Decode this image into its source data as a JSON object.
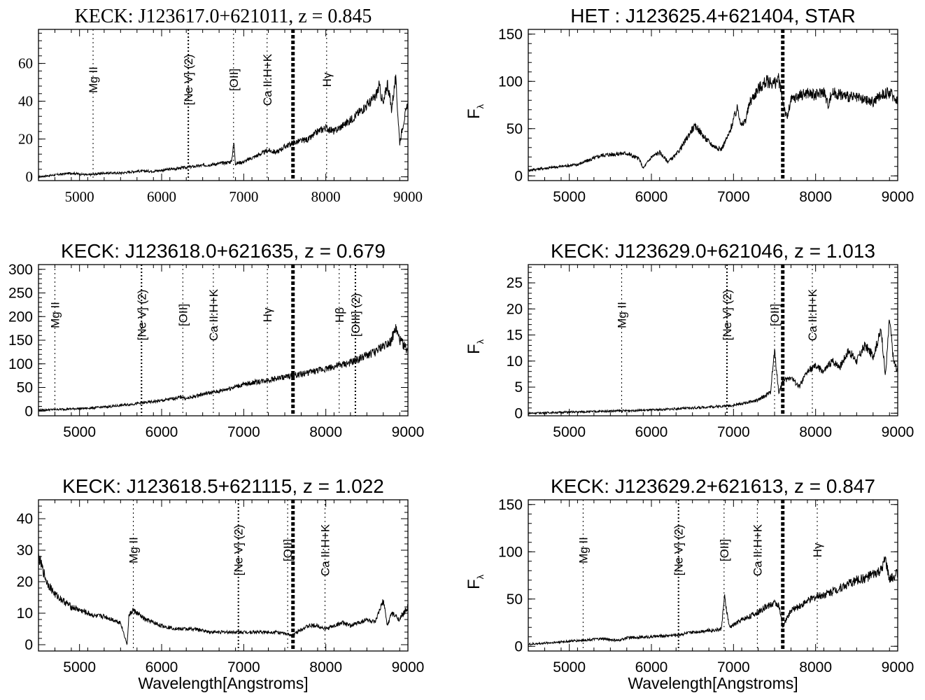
{
  "chart_data": [
    {
      "type": "line",
      "title": "KECK: J123617.0+621011, z =  0.845",
      "xlabel": "",
      "ylabel": "",
      "xlim": [
        4500,
        9000
      ],
      "ylim": [
        -2,
        78
      ],
      "xticks": [
        5000,
        6000,
        7000,
        8000,
        9000
      ],
      "yticks": [
        0,
        20,
        40,
        60
      ],
      "atmospheric_band": 7600,
      "lines": [
        {
          "label": "Mg II",
          "x": 5165
        },
        {
          "label": "[Ne V] (2)",
          "x": 6325
        },
        {
          "label": "[OII]",
          "x": 6876
        },
        {
          "label": "Ca II:H+K",
          "x": 7285
        },
        {
          "label": "Hγ",
          "x": 8010
        }
      ],
      "series": [
        {
          "x": [
            4500,
            4700,
            4900,
            5100,
            5300,
            5500,
            5700,
            5900,
            6100,
            6300,
            6500,
            6700,
            6850,
            6880,
            6900,
            7000,
            7100,
            7200,
            7300,
            7400,
            7500,
            7600,
            7700,
            7800,
            7900,
            8000,
            8100,
            8200,
            8300,
            8400,
            8500,
            8600,
            8650,
            8700,
            8750,
            8800,
            8850,
            8900,
            8950,
            9000
          ],
          "y": [
            0,
            1,
            2,
            1,
            2,
            2,
            3,
            3,
            4,
            5,
            6,
            7,
            8,
            18,
            7,
            8,
            10,
            12,
            14,
            13,
            16,
            18,
            19,
            20,
            24,
            26,
            24,
            27,
            30,
            34,
            38,
            42,
            48,
            38,
            50,
            36,
            52,
            18,
            30,
            38
          ]
        }
      ]
    },
    {
      "type": "line",
      "title": "HET : J123625.4+621404, STAR",
      "xlabel": "",
      "ylabel": "F",
      "xlim": [
        4500,
        9000
      ],
      "ylim": [
        -5,
        155
      ],
      "xticks": [
        5000,
        6000,
        7000,
        8000,
        9000
      ],
      "yticks": [
        0,
        50,
        100,
        150
      ],
      "atmospheric_band": 7600,
      "lines": [],
      "series": [
        {
          "x": [
            4500,
            4800,
            5100,
            5400,
            5700,
            5850,
            5900,
            6000,
            6100,
            6200,
            6300,
            6400,
            6500,
            6550,
            6650,
            6750,
            6850,
            6950,
            7000,
            7050,
            7100,
            7150,
            7200,
            7300,
            7400,
            7500,
            7550,
            7600,
            7650,
            7700,
            7800,
            7900,
            8000,
            8100,
            8150,
            8200,
            8300,
            8400,
            8500,
            8600,
            8700,
            8800,
            8900,
            9000
          ],
          "y": [
            6,
            9,
            12,
            22,
            24,
            18,
            8,
            20,
            25,
            15,
            22,
            35,
            50,
            52,
            40,
            32,
            28,
            45,
            60,
            72,
            52,
            60,
            78,
            92,
            100,
            98,
            102,
            80,
            60,
            80,
            85,
            88,
            85,
            90,
            75,
            88,
            86,
            84,
            82,
            80,
            78,
            86,
            88,
            80
          ]
        }
      ]
    },
    {
      "type": "line",
      "title": "KECK: J123618.0+621635, z =  0.679",
      "xlabel": "",
      "ylabel": "",
      "xlim": [
        4500,
        9000
      ],
      "ylim": [
        -10,
        310
      ],
      "xticks": [
        5000,
        6000,
        7000,
        8000,
        9000
      ],
      "yticks": [
        0,
        50,
        100,
        150,
        200,
        250,
        300
      ],
      "atmospheric_band": 7600,
      "lines": [
        {
          "label": "Mg II",
          "x": 4700
        },
        {
          "label": "[Ne V] (2)",
          "x": 5755
        },
        {
          "label": "[OII]",
          "x": 6258
        },
        {
          "label": "Ca II:H+K",
          "x": 6630
        },
        {
          "label": "Hγ",
          "x": 7288
        },
        {
          "label": "Hβ",
          "x": 8163
        },
        {
          "label": "[OIII] (2)",
          "x": 8360
        }
      ],
      "series": [
        {
          "x": [
            4500,
            4800,
            5100,
            5400,
            5700,
            6000,
            6250,
            6300,
            6500,
            6700,
            6900,
            7100,
            7300,
            7500,
            7700,
            7900,
            8100,
            8300,
            8400,
            8500,
            8600,
            8700,
            8800,
            8850,
            8900,
            8950,
            9000
          ],
          "y": [
            2,
            4,
            6,
            10,
            16,
            22,
            30,
            26,
            36,
            42,
            52,
            60,
            66,
            72,
            78,
            86,
            94,
            102,
            110,
            118,
            125,
            138,
            150,
            175,
            150,
            140,
            125
          ]
        }
      ]
    },
    {
      "type": "line",
      "title": "KECK: J123629.0+621046, z =  1.013",
      "xlabel": "",
      "ylabel": "F",
      "xlim": [
        4500,
        9000
      ],
      "ylim": [
        -0.5,
        28.5
      ],
      "xticks": [
        5000,
        6000,
        7000,
        8000,
        9000
      ],
      "yticks": [
        0,
        5,
        10,
        15,
        20,
        25
      ],
      "atmospheric_band": 7600,
      "lines": [
        {
          "label": "Mg II",
          "x": 5638
        },
        {
          "label": "[Ne V] (2)",
          "x": 6920
        },
        {
          "label": "[OII]",
          "x": 7500
        },
        {
          "label": "Ca II:H+K",
          "x": 7960
        }
      ],
      "series": [
        {
          "x": [
            4500,
            5000,
            5500,
            6000,
            6500,
            7000,
            7300,
            7450,
            7500,
            7550,
            7600,
            7700,
            7800,
            7900,
            8000,
            8100,
            8200,
            8300,
            8400,
            8500,
            8600,
            8700,
            8800,
            8850,
            8900,
            8950,
            9000
          ],
          "y": [
            0,
            0.2,
            0.4,
            0.6,
            1,
            1.5,
            2.5,
            4,
            12,
            4,
            6,
            7,
            5,
            8,
            9,
            8,
            10,
            9,
            12,
            10,
            13,
            11,
            16,
            7,
            18,
            10,
            8
          ]
        }
      ]
    },
    {
      "type": "line",
      "title": "KECK: J123618.5+621115, z =  1.022",
      "xlabel": "Wavelength[Angstroms]",
      "ylabel": "",
      "xlim": [
        4500,
        9000
      ],
      "ylim": [
        -2,
        46
      ],
      "xticks": [
        5000,
        6000,
        7000,
        8000,
        9000
      ],
      "yticks": [
        0,
        10,
        20,
        30,
        40
      ],
      "atmospheric_band": 7600,
      "lines": [
        {
          "label": "Mg II",
          "x": 5655
        },
        {
          "label": "[Ne V] (2)",
          "x": 6935
        },
        {
          "label": "[OII]",
          "x": 7535
        },
        {
          "label": "Ca II:H+K",
          "x": 7990
        }
      ],
      "series": [
        {
          "x": [
            4500,
            4550,
            4600,
            4700,
            4800,
            4900,
            5000,
            5100,
            5200,
            5300,
            5400,
            5500,
            5580,
            5600,
            5650,
            5700,
            5800,
            5900,
            6000,
            6200,
            6400,
            6600,
            6800,
            7000,
            7200,
            7400,
            7600,
            7700,
            7800,
            7900,
            8000,
            8100,
            8200,
            8300,
            8400,
            8500,
            8600,
            8700,
            8750,
            8800,
            8900,
            9000
          ],
          "y": [
            28,
            24,
            20,
            16,
            14,
            12,
            11,
            10,
            9,
            9,
            8,
            7,
            0,
            9,
            11,
            10,
            8,
            7,
            6,
            5,
            5,
            4,
            4,
            4,
            4,
            4,
            3,
            5,
            6,
            6,
            5,
            6,
            7,
            6,
            7,
            8,
            7,
            14,
            6,
            10,
            8,
            12
          ]
        }
      ]
    },
    {
      "type": "line",
      "title": "KECK: J123629.2+621613, z =  0.847",
      "xlabel": "Wavelength[Angstroms]",
      "ylabel": "F",
      "xlim": [
        4500,
        9000
      ],
      "ylim": [
        -5,
        155
      ],
      "xticks": [
        5000,
        6000,
        7000,
        8000,
        9000
      ],
      "yticks": [
        0,
        50,
        100,
        150
      ],
      "atmospheric_band": 7600,
      "lines": [
        {
          "label": "Mg II",
          "x": 5168
        },
        {
          "label": "[Ne V] (2)",
          "x": 6330
        },
        {
          "label": "[OII]",
          "x": 6885
        },
        {
          "label": "Ca II:H+K",
          "x": 7290
        },
        {
          "label": "Hγ",
          "x": 8020
        }
      ],
      "series": [
        {
          "x": [
            4500,
            4800,
            5100,
            5400,
            5600,
            5700,
            6000,
            6300,
            6600,
            6850,
            6890,
            6950,
            7100,
            7300,
            7400,
            7500,
            7550,
            7600,
            7650,
            7700,
            7800,
            7900,
            8000,
            8100,
            8200,
            8300,
            8400,
            8500,
            8600,
            8700,
            8800,
            8850,
            8900,
            9000
          ],
          "y": [
            2,
            4,
            6,
            8,
            6,
            9,
            10,
            12,
            16,
            18,
            52,
            20,
            28,
            36,
            42,
            46,
            44,
            20,
            30,
            38,
            42,
            48,
            52,
            55,
            58,
            62,
            66,
            70,
            72,
            76,
            80,
            92,
            70,
            78
          ]
        }
      ]
    }
  ]
}
